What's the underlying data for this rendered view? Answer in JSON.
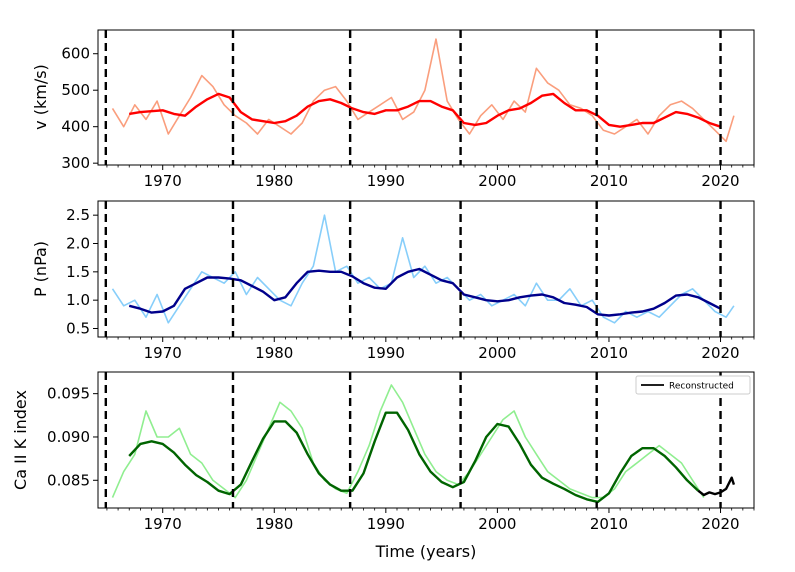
{
  "chart_data": [
    {
      "type": "line",
      "panel": "top",
      "ylabel": "v (km/s)",
      "xlabel": "",
      "xlim": [
        1964.2,
        2023
      ],
      "ylim": [
        295,
        665
      ],
      "xticks": [
        1970,
        1980,
        1990,
        2000,
        2010,
        2020
      ],
      "yticks": [
        300,
        400,
        500,
        600
      ],
      "cycle_boundaries": [
        1964.9,
        1976.3,
        1986.8,
        1996.7,
        2008.9,
        2020.0
      ],
      "series": [
        {
          "name": "v monthly",
          "color": "#fa9e7d",
          "x": [
            1965.5,
            1966.5,
            1967.5,
            1968.5,
            1969.5,
            1970.5,
            1971.5,
            1972.5,
            1973.5,
            1974.5,
            1975.5,
            1976.5,
            1977.5,
            1978.5,
            1979.5,
            1980.5,
            1981.5,
            1982.5,
            1983.5,
            1984.5,
            1985.5,
            1986.5,
            1987.5,
            1988.5,
            1989.5,
            1990.5,
            1991.5,
            1992.5,
            1993.5,
            1994.5,
            1995.5,
            1996.5,
            1997.5,
            1998.5,
            1999.5,
            2000.5,
            2001.5,
            2002.5,
            2003.5,
            2004.5,
            2005.5,
            2006.5,
            2007.5,
            2008.5,
            2009.5,
            2010.5,
            2011.5,
            2012.5,
            2013.5,
            2014.5,
            2015.5,
            2016.5,
            2017.5,
            2018.5,
            2019.5,
            2020.5,
            2021.2
          ],
          "values": [
            450,
            400,
            460,
            420,
            470,
            380,
            430,
            480,
            540,
            510,
            460,
            430,
            410,
            380,
            420,
            400,
            380,
            410,
            470,
            500,
            510,
            470,
            420,
            440,
            460,
            480,
            420,
            440,
            500,
            640,
            470,
            420,
            380,
            430,
            460,
            420,
            470,
            440,
            560,
            520,
            500,
            460,
            450,
            430,
            390,
            380,
            400,
            420,
            380,
            430,
            460,
            470,
            450,
            420,
            390,
            360,
            430
          ]
        },
        {
          "name": "v smoothed",
          "color": "#ff0000",
          "x": [
            1967,
            1968,
            1970,
            1971,
            1972,
            1973,
            1974,
            1975,
            1976,
            1977,
            1978,
            1979,
            1980,
            1981,
            1982,
            1983,
            1984,
            1985,
            1986,
            1987,
            1988,
            1989,
            1990,
            1991,
            1992,
            1993,
            1994,
            1995,
            1996,
            1997,
            1998,
            1999,
            2000,
            2001,
            2002,
            2003,
            2004,
            2005,
            2006,
            2007,
            2008,
            2009,
            2010,
            2011,
            2012,
            2013,
            2014,
            2015,
            2016,
            2017,
            2018,
            2019,
            2020
          ],
          "values": [
            435,
            440,
            445,
            435,
            430,
            455,
            475,
            490,
            480,
            440,
            420,
            415,
            410,
            415,
            430,
            455,
            470,
            475,
            465,
            450,
            440,
            435,
            445,
            445,
            455,
            470,
            470,
            455,
            445,
            410,
            405,
            410,
            430,
            445,
            450,
            465,
            485,
            490,
            465,
            445,
            445,
            430,
            405,
            400,
            405,
            410,
            410,
            425,
            440,
            435,
            425,
            410,
            400
          ]
        }
      ]
    },
    {
      "type": "line",
      "panel": "middle",
      "ylabel": "P (nPa)",
      "xlabel": "",
      "xlim": [
        1964.2,
        2023
      ],
      "ylim": [
        0.35,
        2.75
      ],
      "xticks": [
        1970,
        1980,
        1990,
        2000,
        2010,
        2020
      ],
      "yticks": [
        0.5,
        1.0,
        1.5,
        2.0,
        2.5
      ],
      "ytick_labels": [
        "0.5",
        "1.0",
        "1.5",
        "2.0",
        "2.5"
      ],
      "cycle_boundaries": [
        1964.9,
        1976.3,
        1986.8,
        1996.7,
        2008.9,
        2020.0
      ],
      "series": [
        {
          "name": "P monthly",
          "color": "#87cefa",
          "x": [
            1965.5,
            1966.5,
            1967.5,
            1968.5,
            1969.5,
            1970.5,
            1971.5,
            1972.5,
            1973.5,
            1974.5,
            1975.5,
            1976.5,
            1977.5,
            1978.5,
            1979.5,
            1980.5,
            1981.5,
            1982.5,
            1983.5,
            1984.5,
            1985.5,
            1986.5,
            1987.5,
            1988.5,
            1989.5,
            1990.5,
            1991.5,
            1992.5,
            1993.5,
            1994.5,
            1995.5,
            1996.5,
            1997.5,
            1998.5,
            1999.5,
            2000.5,
            2001.5,
            2002.5,
            2003.5,
            2004.5,
            2005.5,
            2006.5,
            2007.5,
            2008.5,
            2009.5,
            2010.5,
            2011.5,
            2012.5,
            2013.5,
            2014.5,
            2015.5,
            2016.5,
            2017.5,
            2018.5,
            2019.5,
            2020.5,
            2021.2
          ],
          "values": [
            1.2,
            0.9,
            1.0,
            0.7,
            1.1,
            0.6,
            0.9,
            1.2,
            1.5,
            1.4,
            1.3,
            1.5,
            1.1,
            1.4,
            1.2,
            1.0,
            0.9,
            1.3,
            1.6,
            2.5,
            1.5,
            1.6,
            1.3,
            1.4,
            1.2,
            1.3,
            2.1,
            1.4,
            1.6,
            1.3,
            1.4,
            1.2,
            1.0,
            1.1,
            0.9,
            1.0,
            1.1,
            0.9,
            1.3,
            1.0,
            1.0,
            1.2,
            0.9,
            1.0,
            0.7,
            0.6,
            0.8,
            0.7,
            0.8,
            0.7,
            0.9,
            1.1,
            1.2,
            1.0,
            0.8,
            0.7,
            0.9
          ]
        },
        {
          "name": "P smoothed",
          "color": "#00008b",
          "x": [
            1967,
            1968,
            1969,
            1970,
            1971,
            1972,
            1973,
            1974,
            1975,
            1976,
            1977,
            1978,
            1979,
            1980,
            1981,
            1982,
            1983,
            1984,
            1985,
            1986,
            1987,
            1988,
            1989,
            1990,
            1991,
            1992,
            1993,
            1994,
            1995,
            1996,
            1997,
            1998,
            1999,
            2000,
            2001,
            2002,
            2003,
            2004,
            2005,
            2006,
            2007,
            2008,
            2009,
            2010,
            2011,
            2012,
            2013,
            2014,
            2015,
            2016,
            2017,
            2018,
            2019,
            2020
          ],
          "values": [
            0.9,
            0.85,
            0.78,
            0.8,
            0.9,
            1.2,
            1.3,
            1.4,
            1.4,
            1.38,
            1.35,
            1.25,
            1.15,
            1.0,
            1.05,
            1.3,
            1.5,
            1.52,
            1.5,
            1.5,
            1.42,
            1.3,
            1.22,
            1.2,
            1.4,
            1.5,
            1.55,
            1.45,
            1.35,
            1.3,
            1.1,
            1.05,
            1.0,
            0.98,
            1.0,
            1.05,
            1.08,
            1.1,
            1.05,
            0.95,
            0.92,
            0.88,
            0.75,
            0.73,
            0.75,
            0.78,
            0.8,
            0.85,
            0.95,
            1.08,
            1.1,
            1.05,
            0.95,
            0.85
          ]
        }
      ]
    },
    {
      "type": "line",
      "panel": "bottom",
      "ylabel": "Ca II K index",
      "xlabel": "Time (years)",
      "xlim": [
        1964.2,
        2023
      ],
      "ylim": [
        0.0818,
        0.0975
      ],
      "xticks": [
        1970,
        1980,
        1990,
        2000,
        2010,
        2020
      ],
      "yticks": [
        0.085,
        0.09,
        0.095
      ],
      "ytick_labels": [
        "0.085",
        "0.090",
        "0.095"
      ],
      "cycle_boundaries": [
        1964.9,
        1976.3,
        1986.8,
        1996.7,
        2008.9,
        2020.0
      ],
      "legend": {
        "location": "top-right",
        "entries": [
          "Reconstructed"
        ]
      },
      "series": [
        {
          "name": "Ca II K monthly",
          "color": "#90ee90",
          "x": [
            1965.5,
            1966.5,
            1967.5,
            1968.5,
            1969.5,
            1970.5,
            1971.5,
            1972.5,
            1973.5,
            1974.5,
            1975.5,
            1976.5,
            1977.5,
            1978.5,
            1979.5,
            1980.5,
            1981.5,
            1982.5,
            1983.5,
            1984.5,
            1985.5,
            1986.5,
            1987.5,
            1988.5,
            1989.5,
            1990.5,
            1991.5,
            1992.5,
            1993.5,
            1994.5,
            1995.5,
            1996.5,
            1997.5,
            1998.5,
            1999.5,
            2000.5,
            2001.5,
            2002.5,
            2003.5,
            2004.5,
            2005.5,
            2006.5,
            2007.5,
            2008.5,
            2009.5,
            2010.5,
            2011.5,
            2012.5,
            2013.5,
            2014.5,
            2015.5,
            2016.5,
            2017.5,
            2018.5
          ],
          "values": [
            0.083,
            0.086,
            0.088,
            0.093,
            0.09,
            0.09,
            0.091,
            0.088,
            0.087,
            0.085,
            0.084,
            0.083,
            0.085,
            0.088,
            0.091,
            0.094,
            0.093,
            0.091,
            0.087,
            0.085,
            0.084,
            0.0835,
            0.086,
            0.089,
            0.093,
            0.096,
            0.094,
            0.091,
            0.088,
            0.086,
            0.085,
            0.0845,
            0.086,
            0.088,
            0.09,
            0.092,
            0.093,
            0.09,
            0.088,
            0.086,
            0.085,
            0.084,
            0.0835,
            0.083,
            0.083,
            0.084,
            0.086,
            0.087,
            0.088,
            0.089,
            0.088,
            0.087,
            0.085,
            0.083
          ]
        },
        {
          "name": "Ca II K smoothed",
          "color": "#006400",
          "x": [
            1967,
            1968,
            1969,
            1970,
            1971,
            1972,
            1973,
            1974,
            1975,
            1976,
            1977,
            1978,
            1979,
            1980,
            1981,
            1982,
            1983,
            1984,
            1985,
            1986,
            1987,
            1988,
            1989,
            1990,
            1991,
            1992,
            1993,
            1994,
            1995,
            1996,
            1997,
            1998,
            1999,
            2000,
            2001,
            2002,
            2003,
            2004,
            2005,
            2006,
            2007,
            2008,
            2009,
            2010,
            2011,
            2012,
            2013,
            2014,
            2015,
            2016,
            2017,
            2018
          ],
          "values": [
            0.0878,
            0.0892,
            0.0895,
            0.0892,
            0.0882,
            0.0868,
            0.0856,
            0.0848,
            0.0838,
            0.0834,
            0.0845,
            0.0872,
            0.0898,
            0.0918,
            0.0918,
            0.0905,
            0.088,
            0.0858,
            0.0845,
            0.0838,
            0.0838,
            0.0858,
            0.0895,
            0.0928,
            0.0928,
            0.0908,
            0.088,
            0.086,
            0.0848,
            0.0842,
            0.0848,
            0.0872,
            0.09,
            0.0915,
            0.0912,
            0.0892,
            0.0868,
            0.0853,
            0.0846,
            0.084,
            0.0833,
            0.0828,
            0.0825,
            0.0835,
            0.0858,
            0.0878,
            0.0887,
            0.0887,
            0.0878,
            0.0865,
            0.085,
            0.0838
          ]
        },
        {
          "name": "Reconstructed",
          "color": "#000000",
          "x": [
            2018,
            2018.5,
            2019,
            2019.5,
            2020,
            2020.5,
            2021,
            2021.2
          ],
          "values": [
            0.0838,
            0.0833,
            0.0836,
            0.0834,
            0.0836,
            0.084,
            0.0853,
            0.0845
          ]
        }
      ]
    }
  ]
}
